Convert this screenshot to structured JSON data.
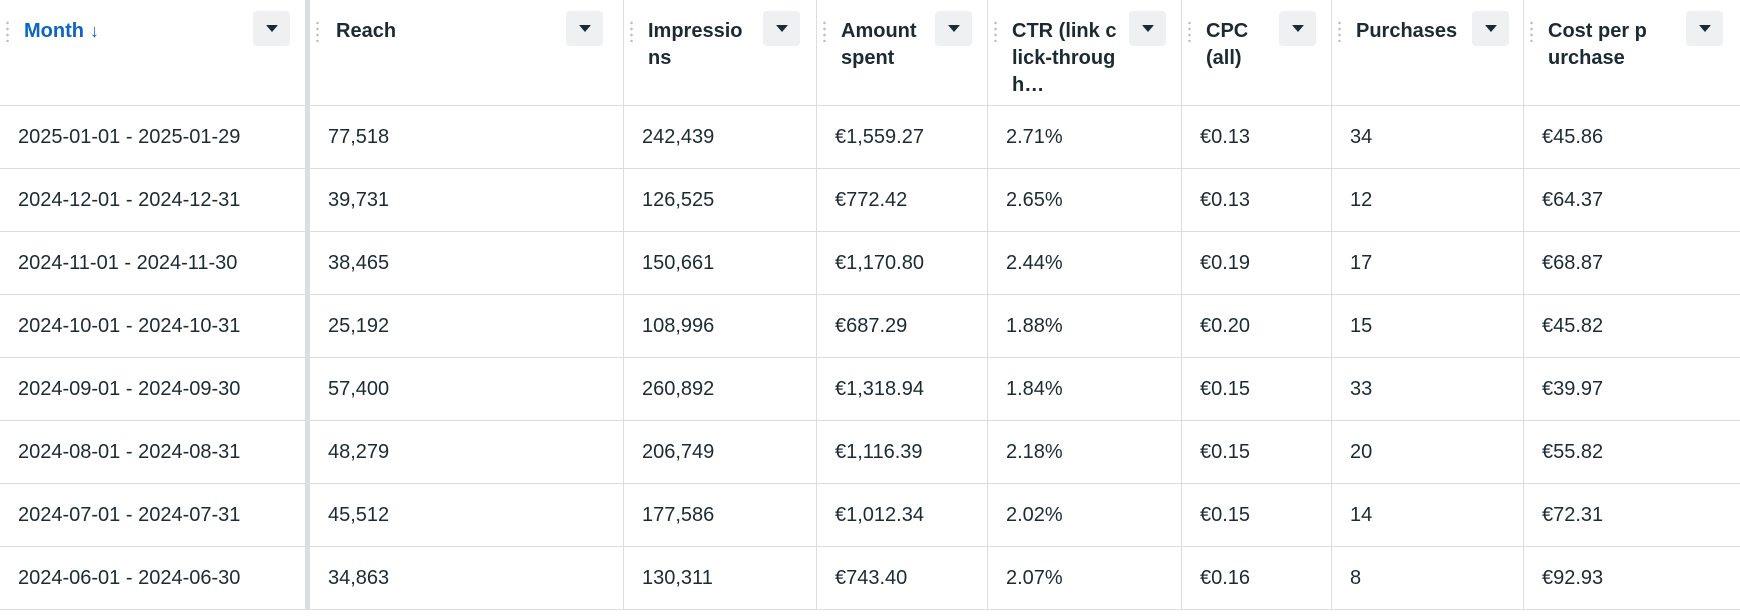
{
  "columns": [
    {
      "label": "Month",
      "sorted": true,
      "sort_direction": "descending",
      "sort_icon": "↓"
    },
    {
      "label": "Reach"
    },
    {
      "label": "Impressions"
    },
    {
      "label": "Amount spent"
    },
    {
      "label": "CTR (link click-through…"
    },
    {
      "label": "CPC (all)"
    },
    {
      "label": "Purchases"
    },
    {
      "label": "Cost per purchase"
    }
  ],
  "rows": [
    [
      "2025-01-01 - 2025-01-29",
      "77,518",
      "242,439",
      "€1,559.27",
      "2.71%",
      "€0.13",
      "34",
      "€45.86"
    ],
    [
      "2024-12-01 - 2024-12-31",
      "39,731",
      "126,525",
      "€772.42",
      "2.65%",
      "€0.13",
      "12",
      "€64.37"
    ],
    [
      "2024-11-01 - 2024-11-30",
      "38,465",
      "150,661",
      "€1,170.80",
      "2.44%",
      "€0.19",
      "17",
      "€68.87"
    ],
    [
      "2024-10-01 - 2024-10-31",
      "25,192",
      "108,996",
      "€687.29",
      "1.88%",
      "€0.20",
      "15",
      "€45.82"
    ],
    [
      "2024-09-01 - 2024-09-30",
      "57,400",
      "260,892",
      "€1,318.94",
      "1.84%",
      "€0.15",
      "33",
      "€39.97"
    ],
    [
      "2024-08-01 - 2024-08-31",
      "48,279",
      "206,749",
      "€1,116.39",
      "2.18%",
      "€0.15",
      "20",
      "€55.82"
    ],
    [
      "2024-07-01 - 2024-07-31",
      "45,512",
      "177,586",
      "€1,012.34",
      "2.02%",
      "€0.15",
      "14",
      "€72.31"
    ],
    [
      "2024-06-01 - 2024-06-30",
      "34,863",
      "130,311",
      "€743.40",
      "2.07%",
      "€0.16",
      "8",
      "€92.93"
    ]
  ],
  "colors": {
    "text": "#1c2b33",
    "sorted_header": "#0a66c2",
    "border": "#dadde1",
    "menu_button_bg": "#eef0f2"
  }
}
